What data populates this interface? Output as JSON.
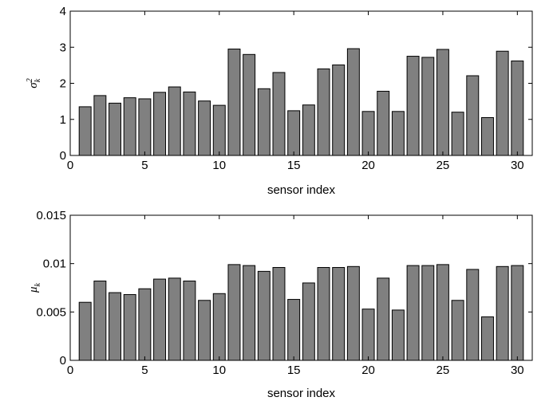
{
  "chart_data": [
    {
      "type": "bar",
      "ylabel": "σ²k",
      "ylabel_symbol": "σ",
      "ylabel_sup": "2",
      "ylabel_sub": "k",
      "xlabel": "sensor index",
      "xlim": [
        0,
        31
      ],
      "ylim": [
        0,
        4
      ],
      "xticks": [
        0,
        5,
        10,
        15,
        20,
        25,
        30
      ],
      "yticks": [
        0,
        1,
        2,
        3,
        4
      ],
      "ytick_labels": [
        "0",
        "1",
        "2",
        "3",
        "4"
      ],
      "bar_color": "#808080",
      "x": [
        1,
        2,
        3,
        4,
        5,
        6,
        7,
        8,
        9,
        10,
        11,
        12,
        13,
        14,
        15,
        16,
        17,
        18,
        19,
        20,
        21,
        22,
        23,
        24,
        25,
        26,
        27,
        28,
        29,
        30
      ],
      "values": [
        1.35,
        1.66,
        1.45,
        1.6,
        1.57,
        1.75,
        1.9,
        1.76,
        1.51,
        1.39,
        2.95,
        2.8,
        1.85,
        2.3,
        1.24,
        1.4,
        2.4,
        2.51,
        2.96,
        1.22,
        1.78,
        1.22,
        2.75,
        2.72,
        2.94,
        1.2,
        2.21,
        1.05,
        2.89,
        2.62
      ]
    },
    {
      "type": "bar",
      "ylabel": "μk",
      "ylabel_symbol": "μ",
      "ylabel_sub": "k",
      "xlabel": "sensor index",
      "xlim": [
        0,
        31
      ],
      "ylim": [
        0,
        0.015
      ],
      "xticks": [
        0,
        5,
        10,
        15,
        20,
        25,
        30
      ],
      "yticks": [
        0,
        0.005,
        0.01,
        0.015
      ],
      "ytick_labels": [
        "0",
        "0.005",
        "0.01",
        "0.015"
      ],
      "bar_color": "#808080",
      "x": [
        1,
        2,
        3,
        4,
        5,
        6,
        7,
        8,
        9,
        10,
        11,
        12,
        13,
        14,
        15,
        16,
        17,
        18,
        19,
        20,
        21,
        22,
        23,
        24,
        25,
        26,
        27,
        28,
        29,
        30
      ],
      "values": [
        0.006,
        0.0082,
        0.007,
        0.0068,
        0.0074,
        0.0084,
        0.0085,
        0.0082,
        0.0062,
        0.0069,
        0.0099,
        0.0098,
        0.0092,
        0.0096,
        0.0063,
        0.008,
        0.0096,
        0.0096,
        0.0097,
        0.0053,
        0.0085,
        0.0052,
        0.0098,
        0.0098,
        0.0099,
        0.0062,
        0.0094,
        0.0045,
        0.0097,
        0.0098
      ]
    }
  ]
}
